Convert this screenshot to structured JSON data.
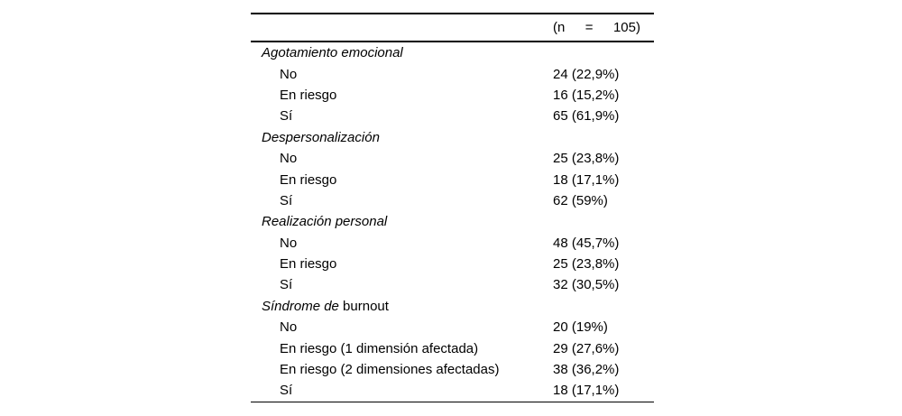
{
  "table": {
    "header": {
      "n_parts": [
        "(n",
        "=",
        "105)"
      ]
    },
    "sections": [
      {
        "title_italic": "Agotamiento emocional",
        "title_roman": "",
        "rows": [
          {
            "label": "No",
            "value": "24 (22,9%)"
          },
          {
            "label": "En riesgo",
            "value": "16 (15,2%)"
          },
          {
            "label": "Sí",
            "value": "65 (61,9%)"
          }
        ]
      },
      {
        "title_italic": "Despersonalización",
        "title_roman": "",
        "rows": [
          {
            "label": "No",
            "value": "25 (23,8%)"
          },
          {
            "label": "En riesgo",
            "value": "18 (17,1%)"
          },
          {
            "label": "Sí",
            "value": "62 (59%)"
          }
        ]
      },
      {
        "title_italic": "Realización personal",
        "title_roman": "",
        "rows": [
          {
            "label": "No",
            "value": "48 (45,7%)"
          },
          {
            "label": "En riesgo",
            "value": "25 (23,8%)"
          },
          {
            "label": "Sí",
            "value": "32 (30,5%)"
          }
        ]
      },
      {
        "title_italic": "Síndrome de",
        "title_roman": " burnout",
        "rows": [
          {
            "label": "No",
            "value": "20 (19%)"
          },
          {
            "label": "En riesgo (1 dimensión afectada)",
            "value": "29 (27,6%)"
          },
          {
            "label": "En riesgo (2 dimensiones afectadas)",
            "value": "38 (36,2%)"
          },
          {
            "label": "Sí",
            "value": "18 (17,1%)"
          }
        ]
      }
    ]
  }
}
